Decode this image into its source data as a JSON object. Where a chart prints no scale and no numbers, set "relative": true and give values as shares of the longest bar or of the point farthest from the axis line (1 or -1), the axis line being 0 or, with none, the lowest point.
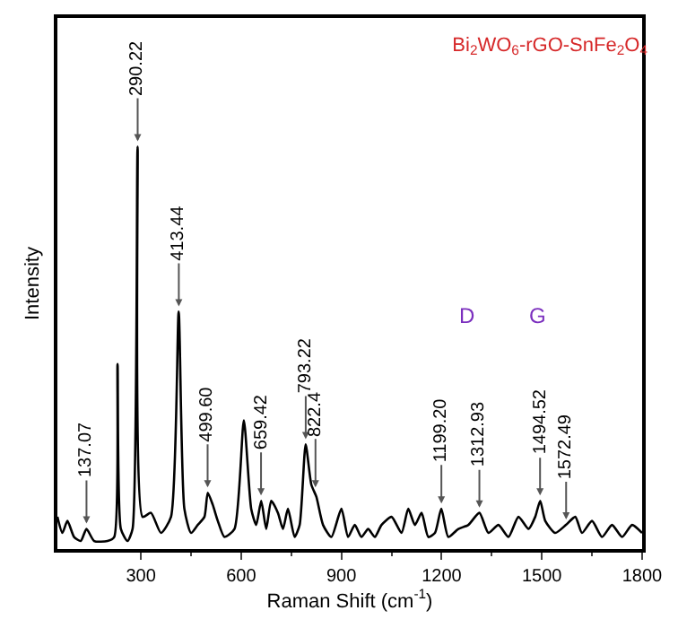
{
  "chart_data": {
    "type": "line",
    "title": "Bi$_{2}$WO$_{6}$-rGO-SnFe$_{2}$O$_{4}$",
    "xlabel": "Raman Shift (cm$^{-1}$)",
    "ylabel": "Intensity",
    "relative": true,
    "tick_labels": "x",
    "marker": "none",
    "line_style": "solid",
    "xlim": [
      50,
      1800
    ],
    "xticks": [
      300,
      600,
      900,
      1200,
      1500,
      1800
    ],
    "x": [
      50,
      65,
      80,
      100,
      120,
      137,
      160,
      200,
      220,
      230,
      240,
      260,
      275,
      290,
      305,
      330,
      360,
      390,
      413,
      430,
      450,
      470,
      490,
      500,
      515,
      530,
      550,
      580,
      608,
      630,
      645,
      660,
      675,
      690,
      710,
      725,
      740,
      760,
      775,
      793,
      810,
      825,
      845,
      870,
      900,
      920,
      940,
      960,
      980,
      1000,
      1020,
      1050,
      1080,
      1100,
      1120,
      1140,
      1160,
      1180,
      1199,
      1220,
      1250,
      1280,
      1313,
      1340,
      1370,
      1400,
      1430,
      1460,
      1480,
      1495,
      1510,
      1540,
      1572,
      1600,
      1620,
      1650,
      1680,
      1710,
      1740,
      1770,
      1800
    ],
    "series": [
      {
        "color": "#000000",
        "values": [
          0.08,
          0.04,
          0.07,
          0.03,
          0.02,
          0.05,
          0.02,
          0.02,
          0.03,
          0.46,
          0.05,
          0.02,
          0.05,
          1.0,
          0.08,
          0.09,
          0.04,
          0.08,
          0.59,
          0.1,
          0.04,
          0.06,
          0.08,
          0.14,
          0.11,
          0.07,
          0.03,
          0.05,
          0.32,
          0.1,
          0.06,
          0.12,
          0.05,
          0.12,
          0.09,
          0.05,
          0.1,
          0.03,
          0.06,
          0.26,
          0.16,
          0.13,
          0.06,
          0.03,
          0.1,
          0.03,
          0.06,
          0.03,
          0.05,
          0.03,
          0.06,
          0.08,
          0.04,
          0.1,
          0.06,
          0.09,
          0.03,
          0.04,
          0.1,
          0.03,
          0.05,
          0.06,
          0.09,
          0.04,
          0.06,
          0.03,
          0.08,
          0.05,
          0.08,
          0.12,
          0.07,
          0.04,
          0.06,
          0.08,
          0.04,
          0.07,
          0.03,
          0.06,
          0.03,
          0.06,
          0.04
        ]
      }
    ],
    "annotations": [
      {
        "text": "137.07",
        "x": 137.07,
        "y": 0.05
      },
      {
        "text": "290.22",
        "x": 290.22,
        "y": 1.0
      },
      {
        "text": "413.44",
        "x": 413.44,
        "y": 0.59
      },
      {
        "text": "499.60",
        "x": 499.6,
        "y": 0.14
      },
      {
        "text": "659.42",
        "x": 659.42,
        "y": 0.12
      },
      {
        "text": "793.22",
        "x": 793.22,
        "y": 0.26
      },
      {
        "text": "822.4",
        "x": 822.4,
        "y": 0.14
      },
      {
        "text": "1199.20",
        "x": 1199.2,
        "y": 0.1
      },
      {
        "text": "1312.93",
        "x": 1312.93,
        "y": 0.09
      },
      {
        "text": "1494.52",
        "x": 1494.52,
        "y": 0.12
      },
      {
        "text": "1572.49",
        "x": 1572.49,
        "y": 0.06
      },
      "D",
      "G"
    ]
  }
}
